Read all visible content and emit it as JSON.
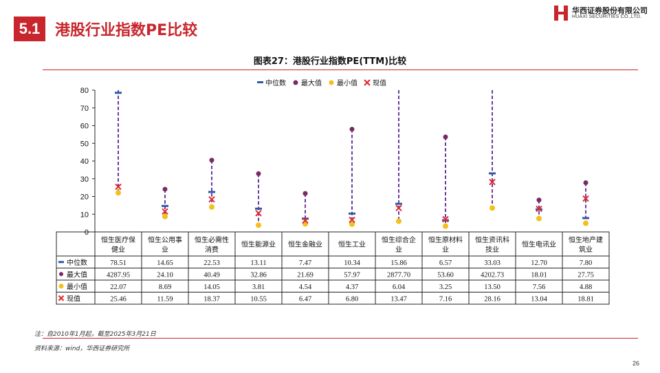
{
  "header": {
    "section_number": "5.1",
    "section_title": "港股行业指数PE比较",
    "logo_cn": "华西证券股份有限公司",
    "logo_en": "HUAXI SECURITIES CO.,LTD."
  },
  "footer": {
    "note": "注：自2010年1月起，截至2025年3月21日",
    "source": "资料来源：wind，华西证券研究所",
    "page_number": "26"
  },
  "colors": {
    "accent": "#c8262c",
    "median": "#2e5aa8",
    "max": "#7a2a62",
    "min": "#f4c01a",
    "current": "#e0262c",
    "range_line": "#6a3aa0"
  },
  "chart_data": {
    "type": "table",
    "title": "图表27：港股行业指数PE(TTM)比较",
    "ylim": [
      0,
      80
    ],
    "yticks": [
      0,
      10,
      20,
      30,
      40,
      50,
      60,
      70,
      80
    ],
    "legend_position": "top",
    "categories": [
      [
        "恒生医疗保",
        "健业"
      ],
      [
        "恒生公用事",
        "业"
      ],
      [
        "恒生必需性",
        "消费"
      ],
      [
        "恒生能源业"
      ],
      [
        "恒生金融业"
      ],
      [
        "恒生工业"
      ],
      [
        "恒生综合企",
        "业"
      ],
      [
        "恒生原材料",
        "业"
      ],
      [
        "恒生资讯科",
        "技业"
      ],
      [
        "恒生电讯业"
      ],
      [
        "恒生地产建",
        "筑业"
      ]
    ],
    "series": [
      {
        "name": "中位数",
        "key": "median",
        "values": [
          78.51,
          14.65,
          22.53,
          13.11,
          7.47,
          10.34,
          15.86,
          6.57,
          33.03,
          12.7,
          7.8
        ],
        "labels": [
          "78.51",
          "14.65",
          "22.53",
          "13.11",
          "7.47",
          "10.34",
          "15.86",
          "6.57",
          "33.03",
          "12.70",
          "7.80"
        ]
      },
      {
        "name": "最大值",
        "key": "max",
        "values": [
          4287.95,
          24.1,
          40.49,
          32.86,
          21.69,
          57.97,
          2877.7,
          53.6,
          4202.73,
          18.01,
          27.75
        ],
        "labels": [
          "4287.95",
          "24.10",
          "40.49",
          "32.86",
          "21.69",
          "57.97",
          "2877.70",
          "53.60",
          "4202.73",
          "18.01",
          "27.75"
        ]
      },
      {
        "name": "最小值",
        "key": "min",
        "values": [
          22.07,
          8.69,
          14.05,
          3.81,
          4.54,
          4.37,
          6.04,
          3.25,
          13.5,
          7.56,
          4.88
        ],
        "labels": [
          "22.07",
          "8.69",
          "14.05",
          "3.81",
          "4.54",
          "4.37",
          "6.04",
          "3.25",
          "13.50",
          "7.56",
          "4.88"
        ]
      },
      {
        "name": "现值",
        "key": "current",
        "values": [
          25.46,
          11.59,
          18.37,
          10.55,
          6.47,
          6.8,
          13.47,
          7.16,
          28.16,
          13.04,
          18.81
        ],
        "labels": [
          "25.46",
          "11.59",
          "18.37",
          "10.55",
          "6.47",
          "6.80",
          "13.47",
          "7.16",
          "28.16",
          "13.04",
          "18.81"
        ]
      }
    ]
  }
}
